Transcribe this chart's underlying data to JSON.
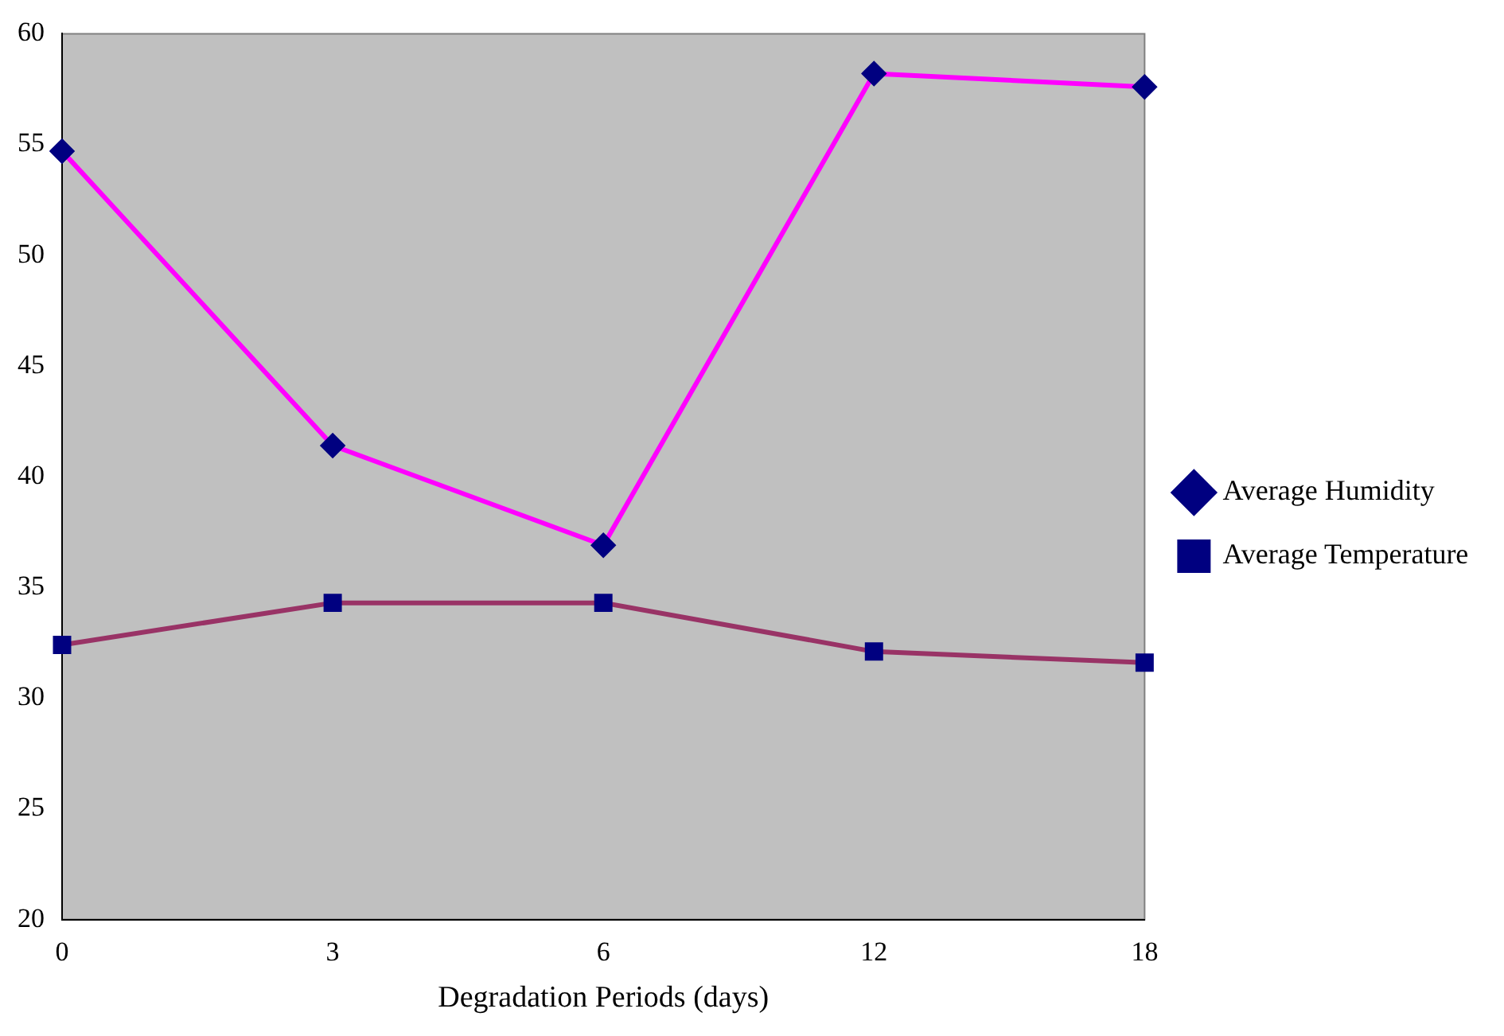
{
  "chart_data": {
    "type": "line",
    "xlabel": "Degradation Periods (days)",
    "categories": [
      "0",
      "3",
      "6",
      "12",
      "18"
    ],
    "series": [
      {
        "name": "Average Humidity",
        "color": "#ff00ff",
        "marker": "diamond",
        "values": [
          54.7,
          41.4,
          36.9,
          58.2,
          57.6
        ]
      },
      {
        "name": "Average Temperature",
        "color": "#993366",
        "marker": "square",
        "values": [
          32.4,
          34.3,
          34.3,
          32.1,
          31.6
        ]
      }
    ],
    "ylim": [
      20,
      60
    ],
    "yticks": [
      20,
      25,
      30,
      35,
      40,
      45,
      50,
      55,
      60
    ],
    "grid": false,
    "legend": "right",
    "line_style": "solid"
  }
}
